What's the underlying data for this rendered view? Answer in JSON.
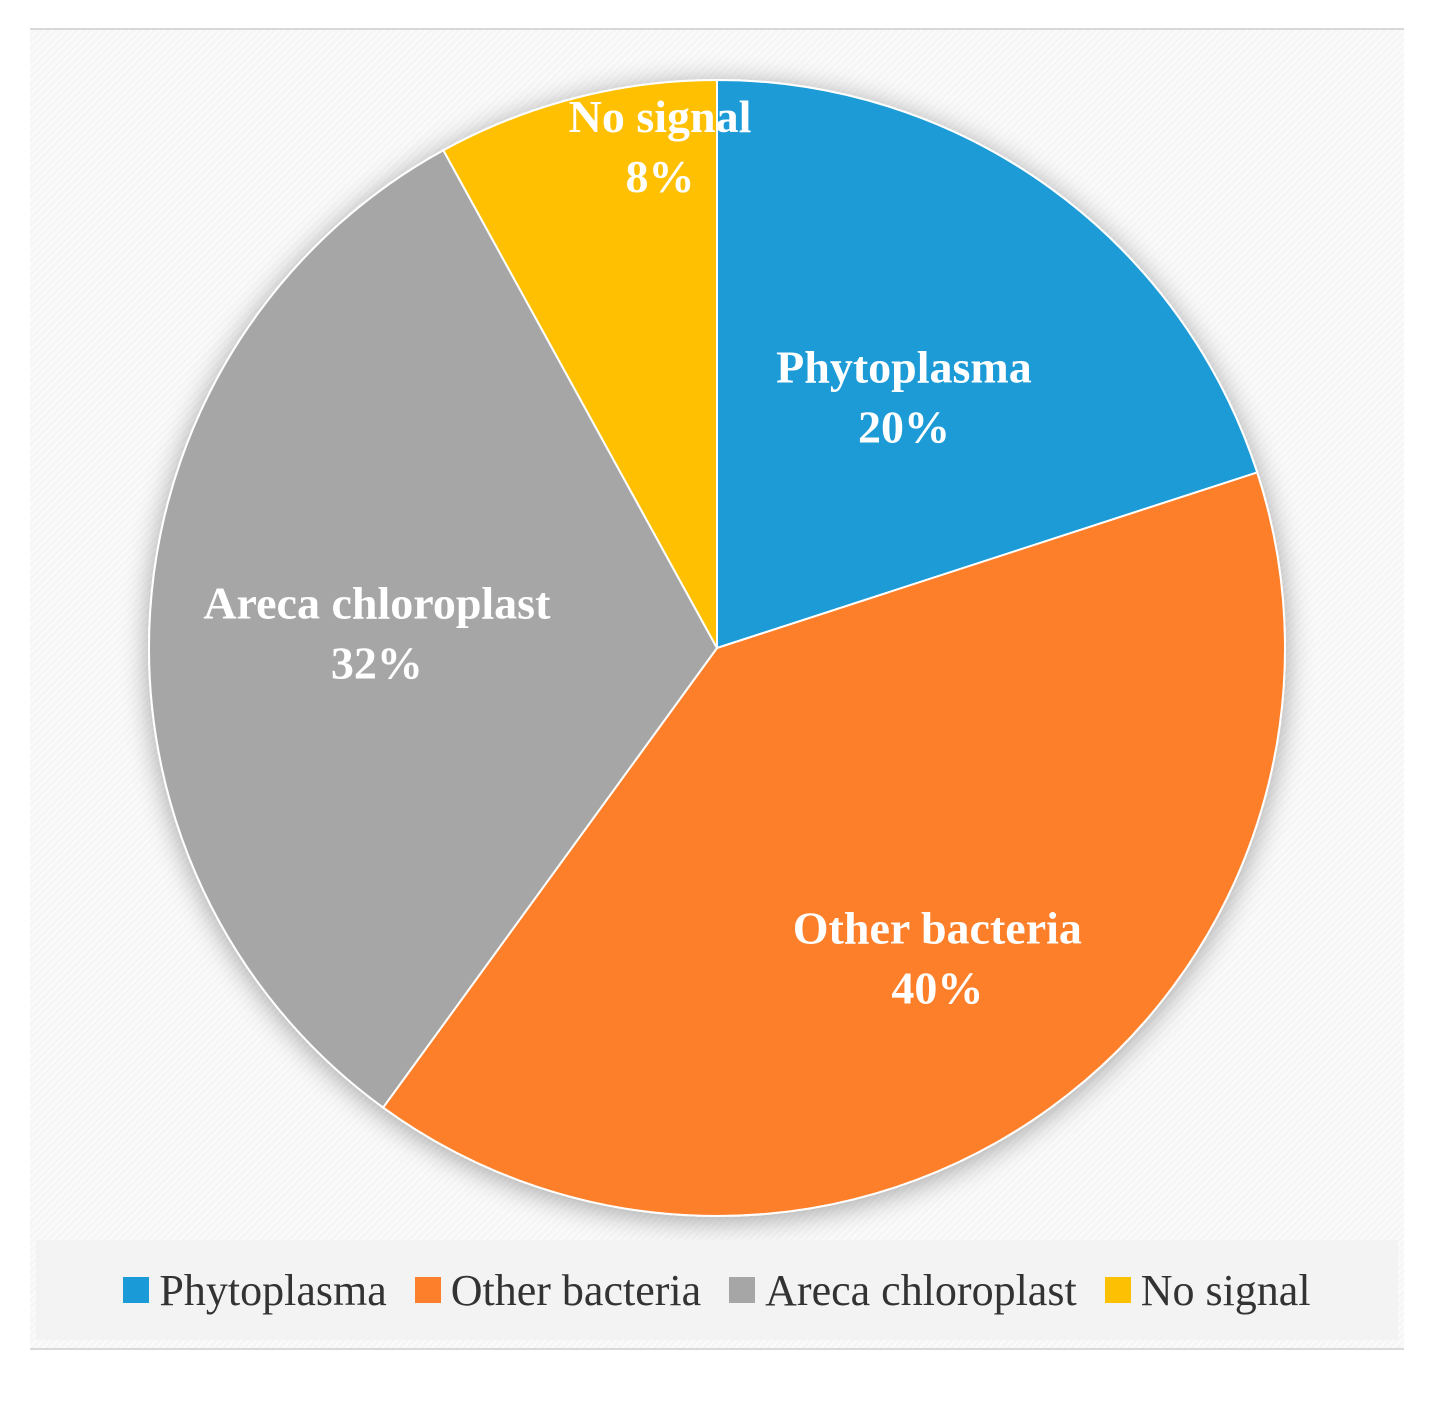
{
  "chart_data": {
    "type": "pie",
    "title": "",
    "start_angle_deg": 0,
    "direction": "clockwise",
    "legend_position": "bottom",
    "slices": [
      {
        "label": "Phytoplasma",
        "value": 20,
        "value_label": "20%",
        "color": "#1a9bd7"
      },
      {
        "label": "Other bacteria",
        "value": 40,
        "value_label": "40%",
        "color": "#fd7f2b"
      },
      {
        "label": "Areca chloroplast",
        "value": 32,
        "value_label": "32%",
        "color": "#a6a6a6"
      },
      {
        "label": "No signal",
        "value": 8,
        "value_label": "8%",
        "color": "#fec003"
      }
    ]
  }
}
